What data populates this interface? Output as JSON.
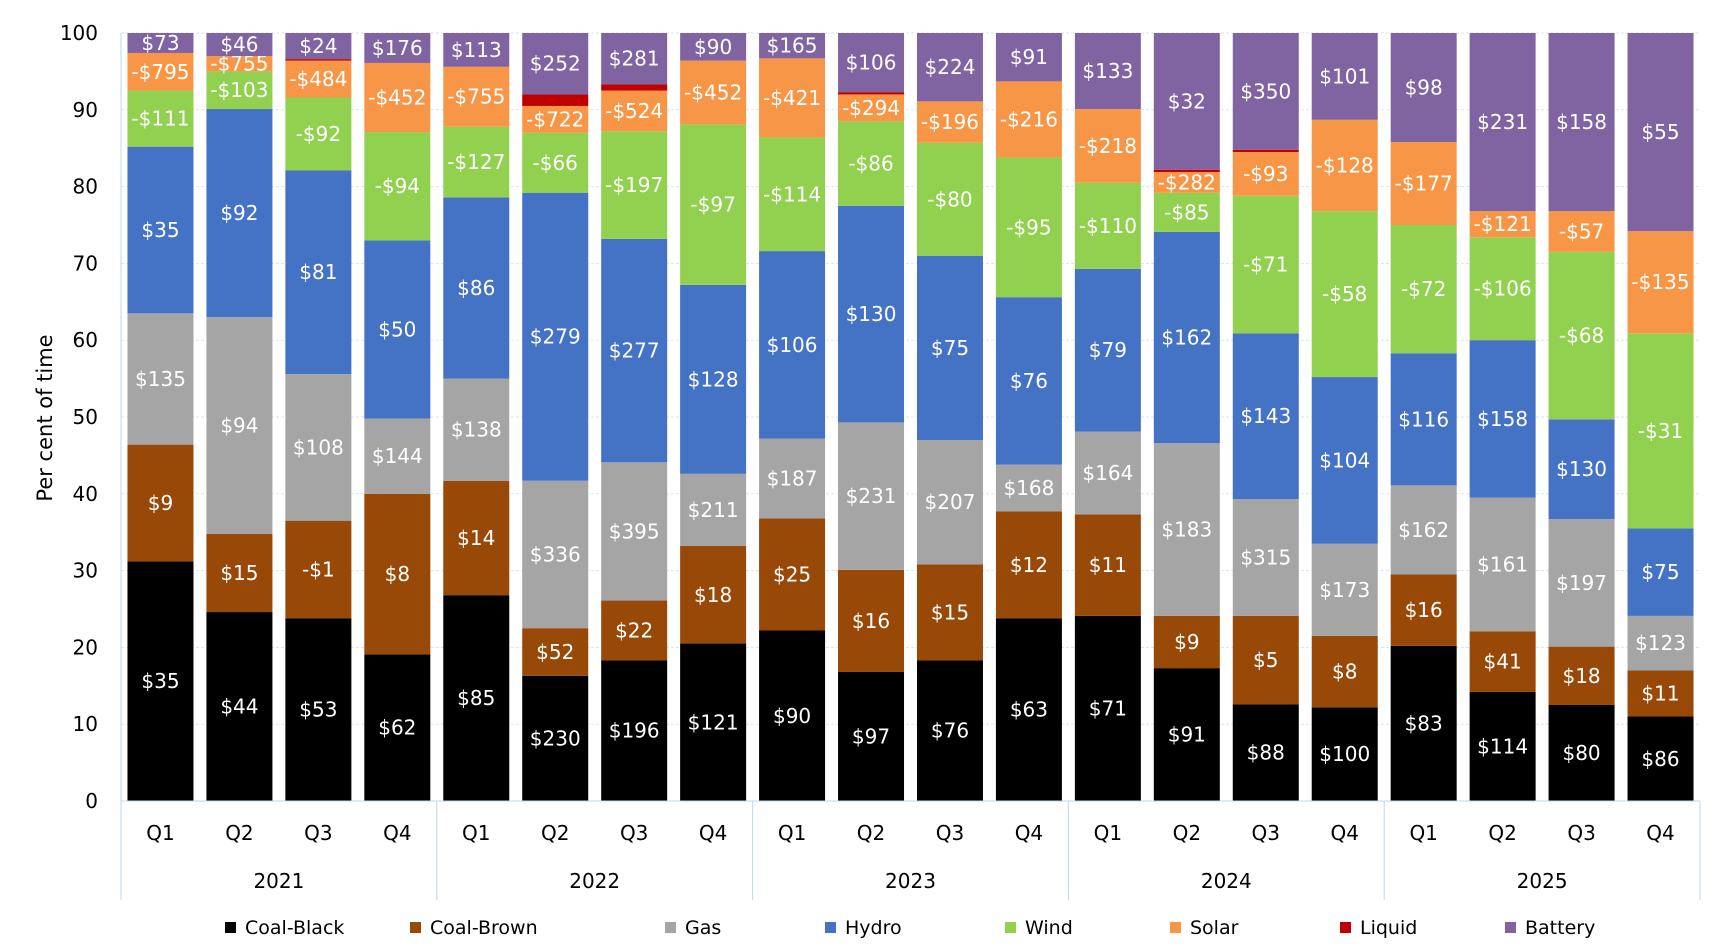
{
  "chart_data": {
    "type": "bar",
    "stacked": true,
    "title": "",
    "xlabel": "",
    "ylabel": "Per cent of time",
    "ylim": [
      0,
      100
    ],
    "yticks": [
      0,
      10,
      20,
      30,
      40,
      50,
      60,
      70,
      80,
      90,
      100
    ],
    "grid": true,
    "legend_position": "bottom",
    "years": [
      "2021",
      "2022",
      "2023",
      "2024",
      "2025"
    ],
    "quarters": [
      "Q1",
      "Q2",
      "Q3",
      "Q4"
    ],
    "categories": [
      "2021 Q1",
      "2021 Q2",
      "2021 Q3",
      "2021 Q4",
      "2022 Q1",
      "2022 Q2",
      "2022 Q3",
      "2022 Q4",
      "2023 Q1",
      "2023 Q2",
      "2023 Q3",
      "2023 Q4",
      "2024 Q1",
      "2024 Q2",
      "2024 Q3",
      "2024 Q4",
      "2025 Q1",
      "2025 Q2",
      "2025 Q3",
      "2025 Q4"
    ],
    "series": [
      {
        "name": "Coal-Black",
        "color": "#000000",
        "values": [
          31.2,
          24.6,
          23.8,
          19.1,
          26.8,
          16.3,
          18.3,
          20.5,
          22.2,
          16.8,
          18.3,
          23.8,
          24.1,
          17.3,
          12.6,
          12.2,
          20.2,
          14.2,
          12.5,
          11.0
        ],
        "labels": [
          "$35",
          "$44",
          "$53",
          "$62",
          "$85",
          "$230",
          "$196",
          "$121",
          "$90",
          "$97",
          "$76",
          "$63",
          "$71",
          "$91",
          "$88",
          "$100",
          "$83",
          "$114",
          "$80",
          "$86"
        ]
      },
      {
        "name": "Coal-Brown",
        "color": "#984807",
        "values": [
          15.2,
          10.2,
          12.7,
          20.9,
          14.9,
          6.2,
          7.8,
          12.7,
          14.6,
          13.3,
          12.5,
          13.9,
          13.2,
          6.8,
          11.5,
          9.3,
          9.3,
          7.9,
          7.6,
          6.0
        ],
        "labels": [
          "$9",
          "$15",
          "-$1",
          "$8",
          "$14",
          "$52",
          "$22",
          "$18",
          "$25",
          "$16",
          "$15",
          "$12",
          "$11",
          "$9",
          "$5",
          "$8",
          "$16",
          "$41",
          "$18",
          "$11"
        ]
      },
      {
        "name": "Gas",
        "color": "#A5A5A5",
        "values": [
          17.1,
          28.2,
          19.1,
          9.8,
          13.3,
          19.2,
          18.0,
          9.4,
          10.4,
          19.2,
          16.2,
          6.1,
          10.8,
          22.5,
          15.2,
          12.0,
          11.6,
          17.4,
          16.6,
          7.1
        ],
        "labels": [
          "$135",
          "$94",
          "$108",
          "$144",
          "$138",
          "$336",
          "$395",
          "$211",
          "$187",
          "$231",
          "$207",
          "$168",
          "$164",
          "$183",
          "$315",
          "$173",
          "$162",
          "$161",
          "$197",
          "$123"
        ]
      },
      {
        "name": "Hydro",
        "color": "#4472C4",
        "values": [
          21.7,
          27.1,
          26.5,
          23.2,
          23.6,
          37.5,
          29.1,
          24.6,
          24.4,
          28.2,
          24.0,
          21.8,
          21.2,
          27.5,
          21.6,
          21.7,
          17.2,
          20.5,
          13.0,
          11.4
        ],
        "labels": [
          "$35",
          "$92",
          "$81",
          "$50",
          "$86",
          "$279",
          "$277",
          "$128",
          "$106",
          "$130",
          "$75",
          "$76",
          "$79",
          "$162",
          "$143",
          "$104",
          "$116",
          "$158",
          "$130",
          "$75"
        ]
      },
      {
        "name": "Wind",
        "color": "#92D050",
        "values": [
          7.3,
          4.9,
          9.5,
          14.1,
          9.2,
          7.8,
          14.0,
          20.9,
          14.8,
          11.0,
          14.7,
          18.2,
          11.2,
          5.1,
          17.9,
          21.6,
          16.7,
          13.4,
          21.8,
          25.4
        ],
        "labels": [
          "-$111",
          "-$103",
          "-$92",
          "-$94",
          "-$127",
          "-$66",
          "-$197",
          "-$97",
          "-$114",
          "-$86",
          "-$80",
          "-$95",
          "-$110",
          "-$85",
          "-$71",
          "-$58",
          "-$72",
          "-$106",
          "-$68",
          "-$31"
        ]
      },
      {
        "name": "Solar",
        "color": "#F79646",
        "values": [
          4.9,
          2.0,
          4.8,
          9.0,
          7.8,
          3.5,
          5.3,
          8.3,
          10.3,
          3.5,
          5.4,
          9.9,
          9.6,
          2.7,
          5.7,
          11.9,
          10.8,
          3.4,
          5.3,
          13.3
        ],
        "labels": [
          "-$795",
          "-$755",
          "-$484",
          "-$452",
          "-$755",
          "-$722",
          "-$524",
          "-$452",
          "-$421",
          "-$294",
          "-$196",
          "-$216",
          "-$218",
          "-$282",
          "-$93",
          "-$128",
          "-$177",
          "-$121",
          "-$57",
          "-$135"
        ]
      },
      {
        "name": "Liquid",
        "color": "#C00000",
        "values": [
          0,
          0,
          0.2,
          0,
          0,
          1.5,
          0.8,
          0,
          0,
          0.3,
          0,
          0,
          0,
          0.3,
          0.3,
          0,
          0,
          0,
          0,
          0
        ],
        "labels": []
      },
      {
        "name": "Battery",
        "color": "#8064A2",
        "values": [
          2.6,
          3.0,
          3.4,
          3.9,
          4.4,
          8.0,
          6.7,
          3.6,
          3.3,
          7.7,
          8.9,
          6.3,
          9.9,
          17.8,
          15.2,
          11.3,
          14.2,
          23.2,
          23.2,
          25.8
        ],
        "labels": [
          "$73",
          "$46",
          "$24",
          "$176",
          "$113",
          "$252",
          "$281",
          "$90",
          "$165",
          "$106",
          "$224",
          "$91",
          "$133",
          "$32",
          "$350",
          "$101",
          "$98",
          "$231",
          "$158",
          "$55"
        ]
      }
    ]
  }
}
